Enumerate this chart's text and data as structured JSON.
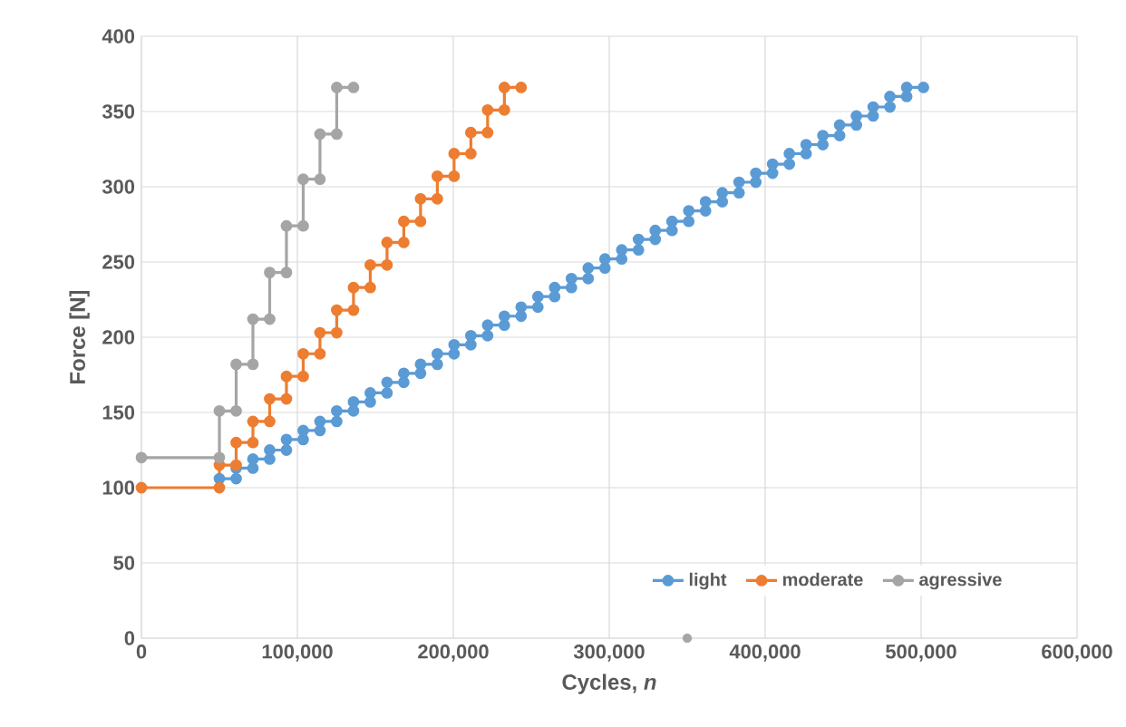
{
  "chart_data": {
    "type": "line",
    "xlabel": "Cycles, *n*",
    "ylabel": "Force [N]",
    "xlim": [
      0,
      600000
    ],
    "ylim": [
      0,
      400
    ],
    "xticks": [
      {
        "value": 0,
        "label": "0"
      },
      {
        "value": 100000,
        "label": "100,000"
      },
      {
        "value": 200000,
        "label": "200,000"
      },
      {
        "value": 300000,
        "label": "300,000"
      },
      {
        "value": 400000,
        "label": "400,000"
      },
      {
        "value": 500000,
        "label": "500,000"
      },
      {
        "value": 600000,
        "label": "600,000"
      }
    ],
    "yticks": [
      0,
      50,
      100,
      150,
      200,
      250,
      300,
      350,
      400
    ],
    "grid": true,
    "legend": "bottom right",
    "marker": "circle",
    "line_style": "solid",
    "series": [
      {
        "name": "light",
        "color": "#5b9bd5",
        "x": [
          50000,
          60750,
          60750,
          71500,
          71500,
          82250,
          82250,
          93000,
          93000,
          103750,
          103750,
          114500,
          114500,
          125250,
          125250,
          136000,
          136000,
          146750,
          146750,
          157500,
          157500,
          168250,
          168250,
          179000,
          179000,
          189750,
          189750,
          200500,
          200500,
          211250,
          211250,
          222000,
          222000,
          232750,
          232750,
          243500,
          243500,
          254250,
          254250,
          265000,
          265000,
          275750,
          275750,
          286500,
          286500,
          297250,
          297250,
          308000,
          308000,
          318750,
          318750,
          329500,
          329500,
          340250,
          340250,
          351000,
          351000,
          361750,
          361750,
          372500,
          372500,
          383250,
          383250,
          394000,
          394000,
          404750,
          404750,
          415500,
          415500,
          426250,
          426250,
          437000,
          437000,
          447750,
          447750,
          458500,
          458500,
          469250,
          469250,
          480000,
          480000,
          490750,
          490750,
          501500
        ],
        "values": [
          106,
          106,
          113,
          113,
          119,
          119,
          125,
          125,
          132,
          132,
          138,
          138,
          144,
          144,
          151,
          151,
          157,
          157,
          163,
          163,
          170,
          170,
          176,
          176,
          182,
          182,
          189,
          189,
          195,
          195,
          201,
          201,
          208,
          208,
          214,
          214,
          220,
          220,
          227,
          227,
          233,
          233,
          239,
          239,
          246,
          246,
          252,
          252,
          258,
          258,
          265,
          265,
          271,
          271,
          277,
          277,
          284,
          284,
          290,
          290,
          296,
          296,
          303,
          303,
          309,
          309,
          315,
          315,
          322,
          322,
          328,
          328,
          334,
          334,
          341,
          341,
          347,
          347,
          353,
          353,
          360,
          360,
          366,
          366
        ]
      },
      {
        "name": "moderate",
        "color": "#ed7d31",
        "x": [
          0,
          50000,
          50000,
          60750,
          60750,
          71500,
          71500,
          82250,
          82250,
          93000,
          93000,
          103750,
          103750,
          114500,
          114500,
          125250,
          125250,
          136000,
          136000,
          146750,
          146750,
          157500,
          157500,
          168250,
          168250,
          179000,
          179000,
          189750,
          189750,
          200500,
          200500,
          211250,
          211250,
          222000,
          222000,
          232750,
          232750,
          243500
        ],
        "values": [
          100,
          100,
          115,
          115,
          130,
          130,
          144,
          144,
          159,
          159,
          174,
          174,
          189,
          189,
          203,
          203,
          218,
          218,
          233,
          233,
          248,
          248,
          263,
          263,
          277,
          277,
          292,
          292,
          307,
          307,
          322,
          322,
          336,
          336,
          351,
          351,
          366,
          366
        ]
      },
      {
        "name": "agressive",
        "color": "#a5a5a5",
        "x": [
          0,
          50000,
          50000,
          60750,
          60750,
          71500,
          71500,
          82250,
          82250,
          93000,
          93000,
          103750,
          103750,
          114500,
          114500,
          125250,
          125250,
          136000
        ],
        "values": [
          120,
          120,
          151,
          151,
          182,
          182,
          212,
          212,
          243,
          243,
          274,
          274,
          305,
          305,
          335,
          335,
          366,
          366
        ]
      },
      {
        "type": "scatter",
        "color": "#a5a5a5",
        "x": [
          350000
        ],
        "values": [
          0
        ]
      }
    ]
  }
}
